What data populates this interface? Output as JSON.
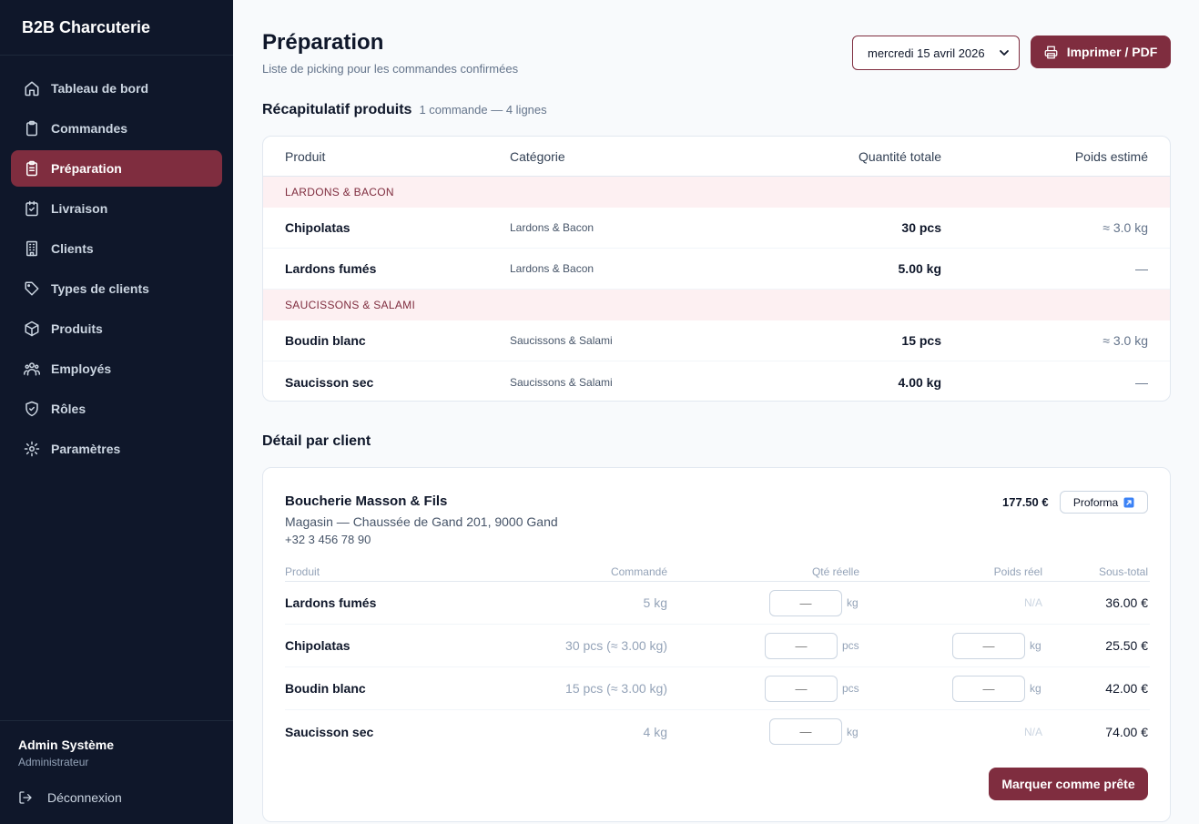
{
  "sidebar": {
    "brand": "B2B Charcuterie",
    "items": [
      {
        "label": "Tableau de bord",
        "icon": "home-icon",
        "active": false
      },
      {
        "label": "Commandes",
        "icon": "clipboard-icon",
        "active": false
      },
      {
        "label": "Préparation",
        "icon": "clipboard-list-icon",
        "active": true
      },
      {
        "label": "Livraison",
        "icon": "calendar-check-icon",
        "active": false
      },
      {
        "label": "Clients",
        "icon": "building-icon",
        "active": false
      },
      {
        "label": "Types de clients",
        "icon": "tag-icon",
        "active": false
      },
      {
        "label": "Produits",
        "icon": "box-icon",
        "active": false
      },
      {
        "label": "Employés",
        "icon": "users-icon",
        "active": false
      },
      {
        "label": "Rôles",
        "icon": "shield-icon",
        "active": false
      },
      {
        "label": "Paramètres",
        "icon": "gear-icon",
        "active": false
      }
    ],
    "user": {
      "name": "Admin Système",
      "role": "Administrateur"
    },
    "logout_label": "Déconnexion"
  },
  "header": {
    "title": "Préparation",
    "subtitle": "Liste de picking pour les commandes confirmées",
    "date_selected": "mercredi 15 avril 2026",
    "print_label": "Imprimer / PDF"
  },
  "summary": {
    "title": "Récapitulatif produits",
    "meta": "1 commande — 4 lignes",
    "columns": [
      "Produit",
      "Catégorie",
      "Quantité totale",
      "Poids estimé"
    ],
    "groups": [
      {
        "name": "LARDONS & BACON",
        "rows": [
          {
            "product": "Chipolatas",
            "category": "Lardons & Bacon",
            "quantity": "30 pcs",
            "weight": "≈ 3.0 kg"
          },
          {
            "product": "Lardons fumés",
            "category": "Lardons & Bacon",
            "quantity": "5.00 kg",
            "weight": "—"
          }
        ]
      },
      {
        "name": "SAUCISSONS & SALAMI",
        "rows": [
          {
            "product": "Boudin blanc",
            "category": "Saucissons & Salami",
            "quantity": "15 pcs",
            "weight": "≈ 3.0 kg"
          },
          {
            "product": "Saucisson sec",
            "category": "Saucissons & Salami",
            "quantity": "4.00 kg",
            "weight": "—"
          }
        ]
      }
    ]
  },
  "detail": {
    "title": "Détail par client",
    "client": {
      "name": "Boucherie Masson & Fils",
      "address": "Magasin — Chaussée de Gand 201, 9000 Gand",
      "phone": "+32 3 456 78 90",
      "total": "177.50 €",
      "proforma_label": "Proforma"
    },
    "columns": [
      "Produit",
      "Commandé",
      "Qté réelle",
      "Poids réel",
      "Sous-total"
    ],
    "rows": [
      {
        "product": "Lardons fumés",
        "ordered": "5 kg",
        "qty_value": "—",
        "qty_unit": "kg",
        "weight_value": null,
        "weight_na": "N/A",
        "subtotal": "36.00 €"
      },
      {
        "product": "Chipolatas",
        "ordered": "30 pcs (≈ 3.00 kg)",
        "qty_value": "—",
        "qty_unit": "pcs",
        "weight_value": "—",
        "weight_unit": "kg",
        "subtotal": "25.50 €"
      },
      {
        "product": "Boudin blanc",
        "ordered": "15 pcs (≈ 3.00 kg)",
        "qty_value": "—",
        "qty_unit": "pcs",
        "weight_value": "—",
        "weight_unit": "kg",
        "subtotal": "42.00 €"
      },
      {
        "product": "Saucisson sec",
        "ordered": "4 kg",
        "qty_value": "—",
        "qty_unit": "kg",
        "weight_value": null,
        "weight_na": "N/A",
        "subtotal": "74.00 €"
      }
    ],
    "ready_label": "Marquer comme prête"
  },
  "colors": {
    "sidebar_bg": "#0f172a",
    "accent": "#7f2d3f",
    "category_bg": "#fdf0f2"
  }
}
